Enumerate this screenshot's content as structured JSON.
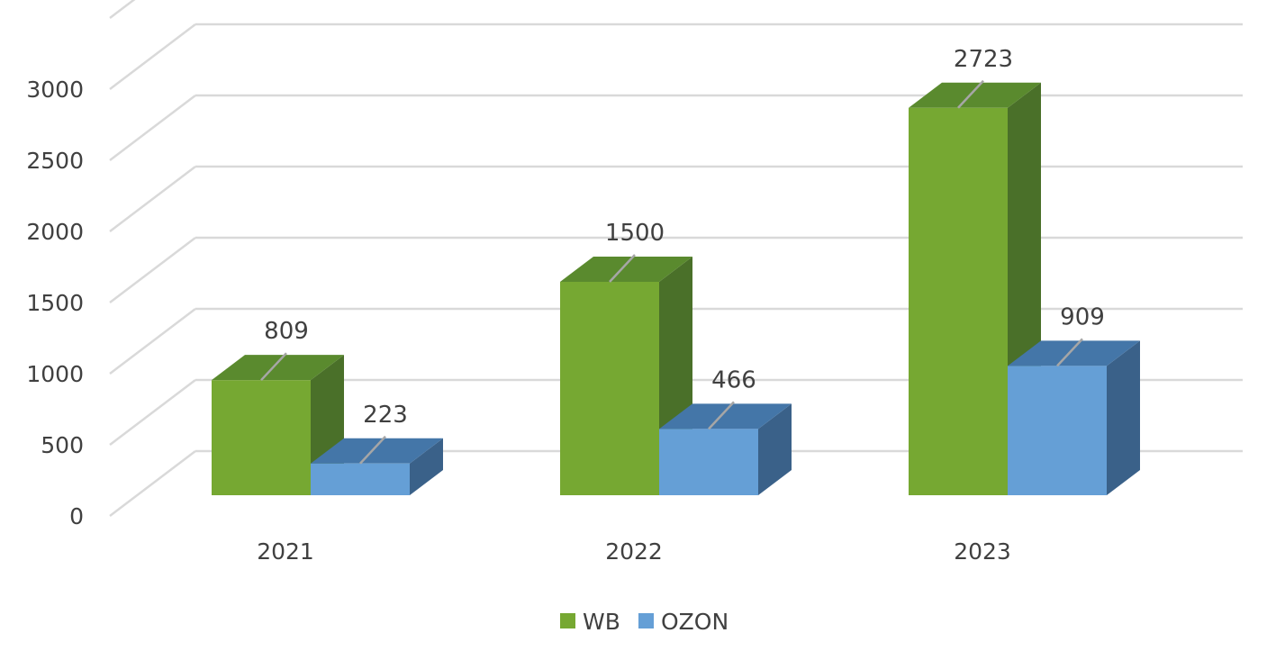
{
  "chart_data": {
    "type": "bar",
    "style": "3d-clustered-column",
    "categories": [
      "2021",
      "2022",
      "2023"
    ],
    "series": [
      {
        "name": "WB",
        "values": [
          809,
          1500,
          2723
        ],
        "color": "#76a832"
      },
      {
        "name": "OZON",
        "values": [
          223,
          466,
          909
        ],
        "color": "#659fd6"
      }
    ],
    "yticks": [
      "0",
      "500",
      "1000",
      "1500",
      "2000",
      "2500",
      "3000"
    ],
    "ylim": [
      0,
      3500
    ],
    "grid": true,
    "data_labels": true,
    "legend": "bottom"
  }
}
